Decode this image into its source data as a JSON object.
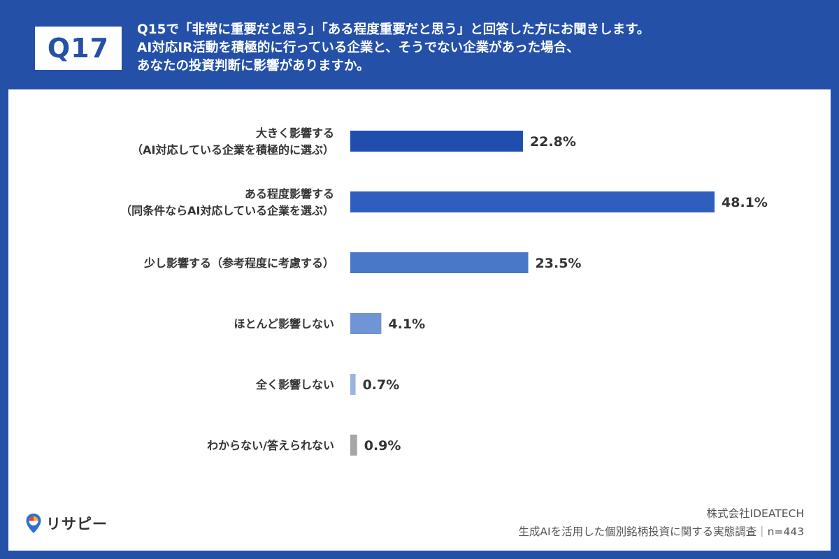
{
  "header": {
    "badge": "Q17",
    "question_lines": [
      "Q15で「非常に重要だと思う」「ある程度重要だと思う」と回答した方にお聞きします。",
      "AI対応IR活動を積極的に行っている企業と、そうでない企業があった場合、",
      "あなたの投資判断に影響がありますか。"
    ]
  },
  "chart_data": {
    "type": "bar",
    "orientation": "horizontal",
    "categories": [
      [
        "大きく影響する",
        "（AI対応している企業を積極的に選ぶ）"
      ],
      [
        "ある程度影響する",
        "（同条件ならAI対応している企業を選ぶ）"
      ],
      [
        "少し影響する（参考程度に考慮する）"
      ],
      [
        "ほとんど影響しない"
      ],
      [
        "全く影響しない"
      ],
      [
        "わからない/答えられない"
      ]
    ],
    "values": [
      22.8,
      48.1,
      23.5,
      4.1,
      0.7,
      0.9
    ],
    "value_labels": [
      "22.8%",
      "48.1%",
      "23.5%",
      "4.1%",
      "0.7%",
      "0.9%"
    ],
    "colors": [
      "#1f4eaf",
      "#2f5fbe",
      "#4a78c8",
      "#6f95d4",
      "#9bb4df",
      "#a6a6a6"
    ],
    "xlim": [
      0,
      50
    ],
    "title": "",
    "xlabel": "",
    "ylabel": "",
    "grid": false,
    "legend": "none"
  },
  "footer": {
    "logo_text": "リサピー",
    "company": "株式会社IDEATECH",
    "survey": "生成AIを活用した個別銘柄投資に関する実態調査｜n=443"
  },
  "colors": {
    "background": "#2450a8",
    "panel": "#ffffff",
    "label_text": "#333333"
  }
}
